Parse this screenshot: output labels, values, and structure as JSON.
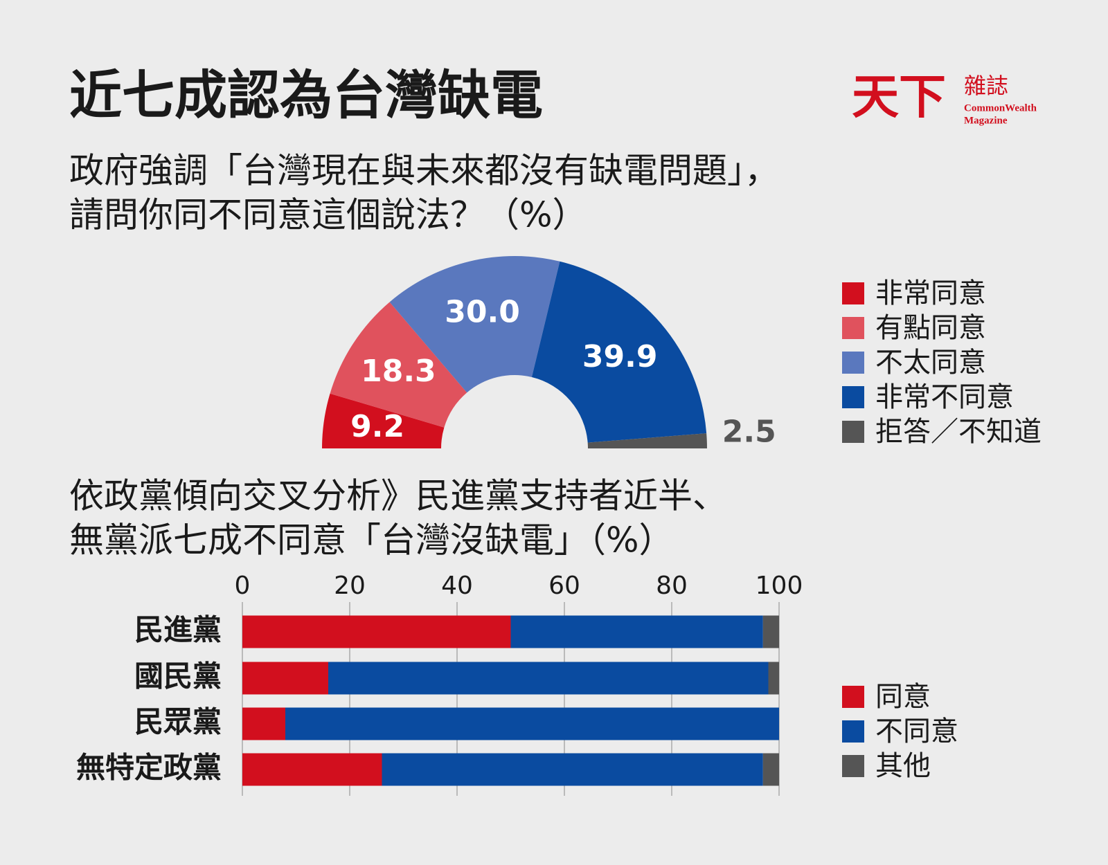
{
  "title": "近七成認為台灣缺電",
  "logo": {
    "name": "天下",
    "sub": "雜誌",
    "en": [
      "CommonWealth",
      "Magazine"
    ]
  },
  "chart_data": [
    {
      "type": "pie",
      "donut": true,
      "half": true,
      "title": [
        "政府強調「台灣現在與未來都沒有缺電問題」，",
        "請問你同不同意這個說法？（%）"
      ],
      "categories": [
        "非常同意",
        "有點同意",
        "不太同意",
        "非常不同意",
        "拒答／不知道"
      ],
      "values": [
        9.2,
        18.3,
        30.0,
        39.9,
        2.5
      ],
      "value_labels": [
        "9.2",
        "18.3",
        "30.0",
        "39.9",
        "2.5"
      ],
      "colors": [
        "#d20f1e",
        "#e0525d",
        "#5a78be",
        "#0a4ba0",
        "#555555"
      ]
    },
    {
      "type": "stacked-bar",
      "orientation": "horizontal",
      "title": [
        "依政黨傾向交叉分析》民進黨支持者近半、",
        "無黨派七成不同意「台灣沒缺電」（%）"
      ],
      "categories": [
        "民進黨",
        "國民黨",
        "民眾黨",
        "無特定政黨"
      ],
      "series": [
        {
          "name": "同意",
          "color": "#d20f1e",
          "values": [
            50,
            16,
            8,
            26
          ]
        },
        {
          "name": "不同意",
          "color": "#0a4ba0",
          "values": [
            47,
            82,
            92,
            71
          ]
        },
        {
          "name": "其他",
          "color": "#555555",
          "values": [
            3,
            2,
            0,
            3
          ]
        }
      ],
      "xlim": [
        0,
        100
      ],
      "xticks": [
        0,
        20,
        40,
        60,
        80,
        100
      ],
      "grid": true
    }
  ]
}
